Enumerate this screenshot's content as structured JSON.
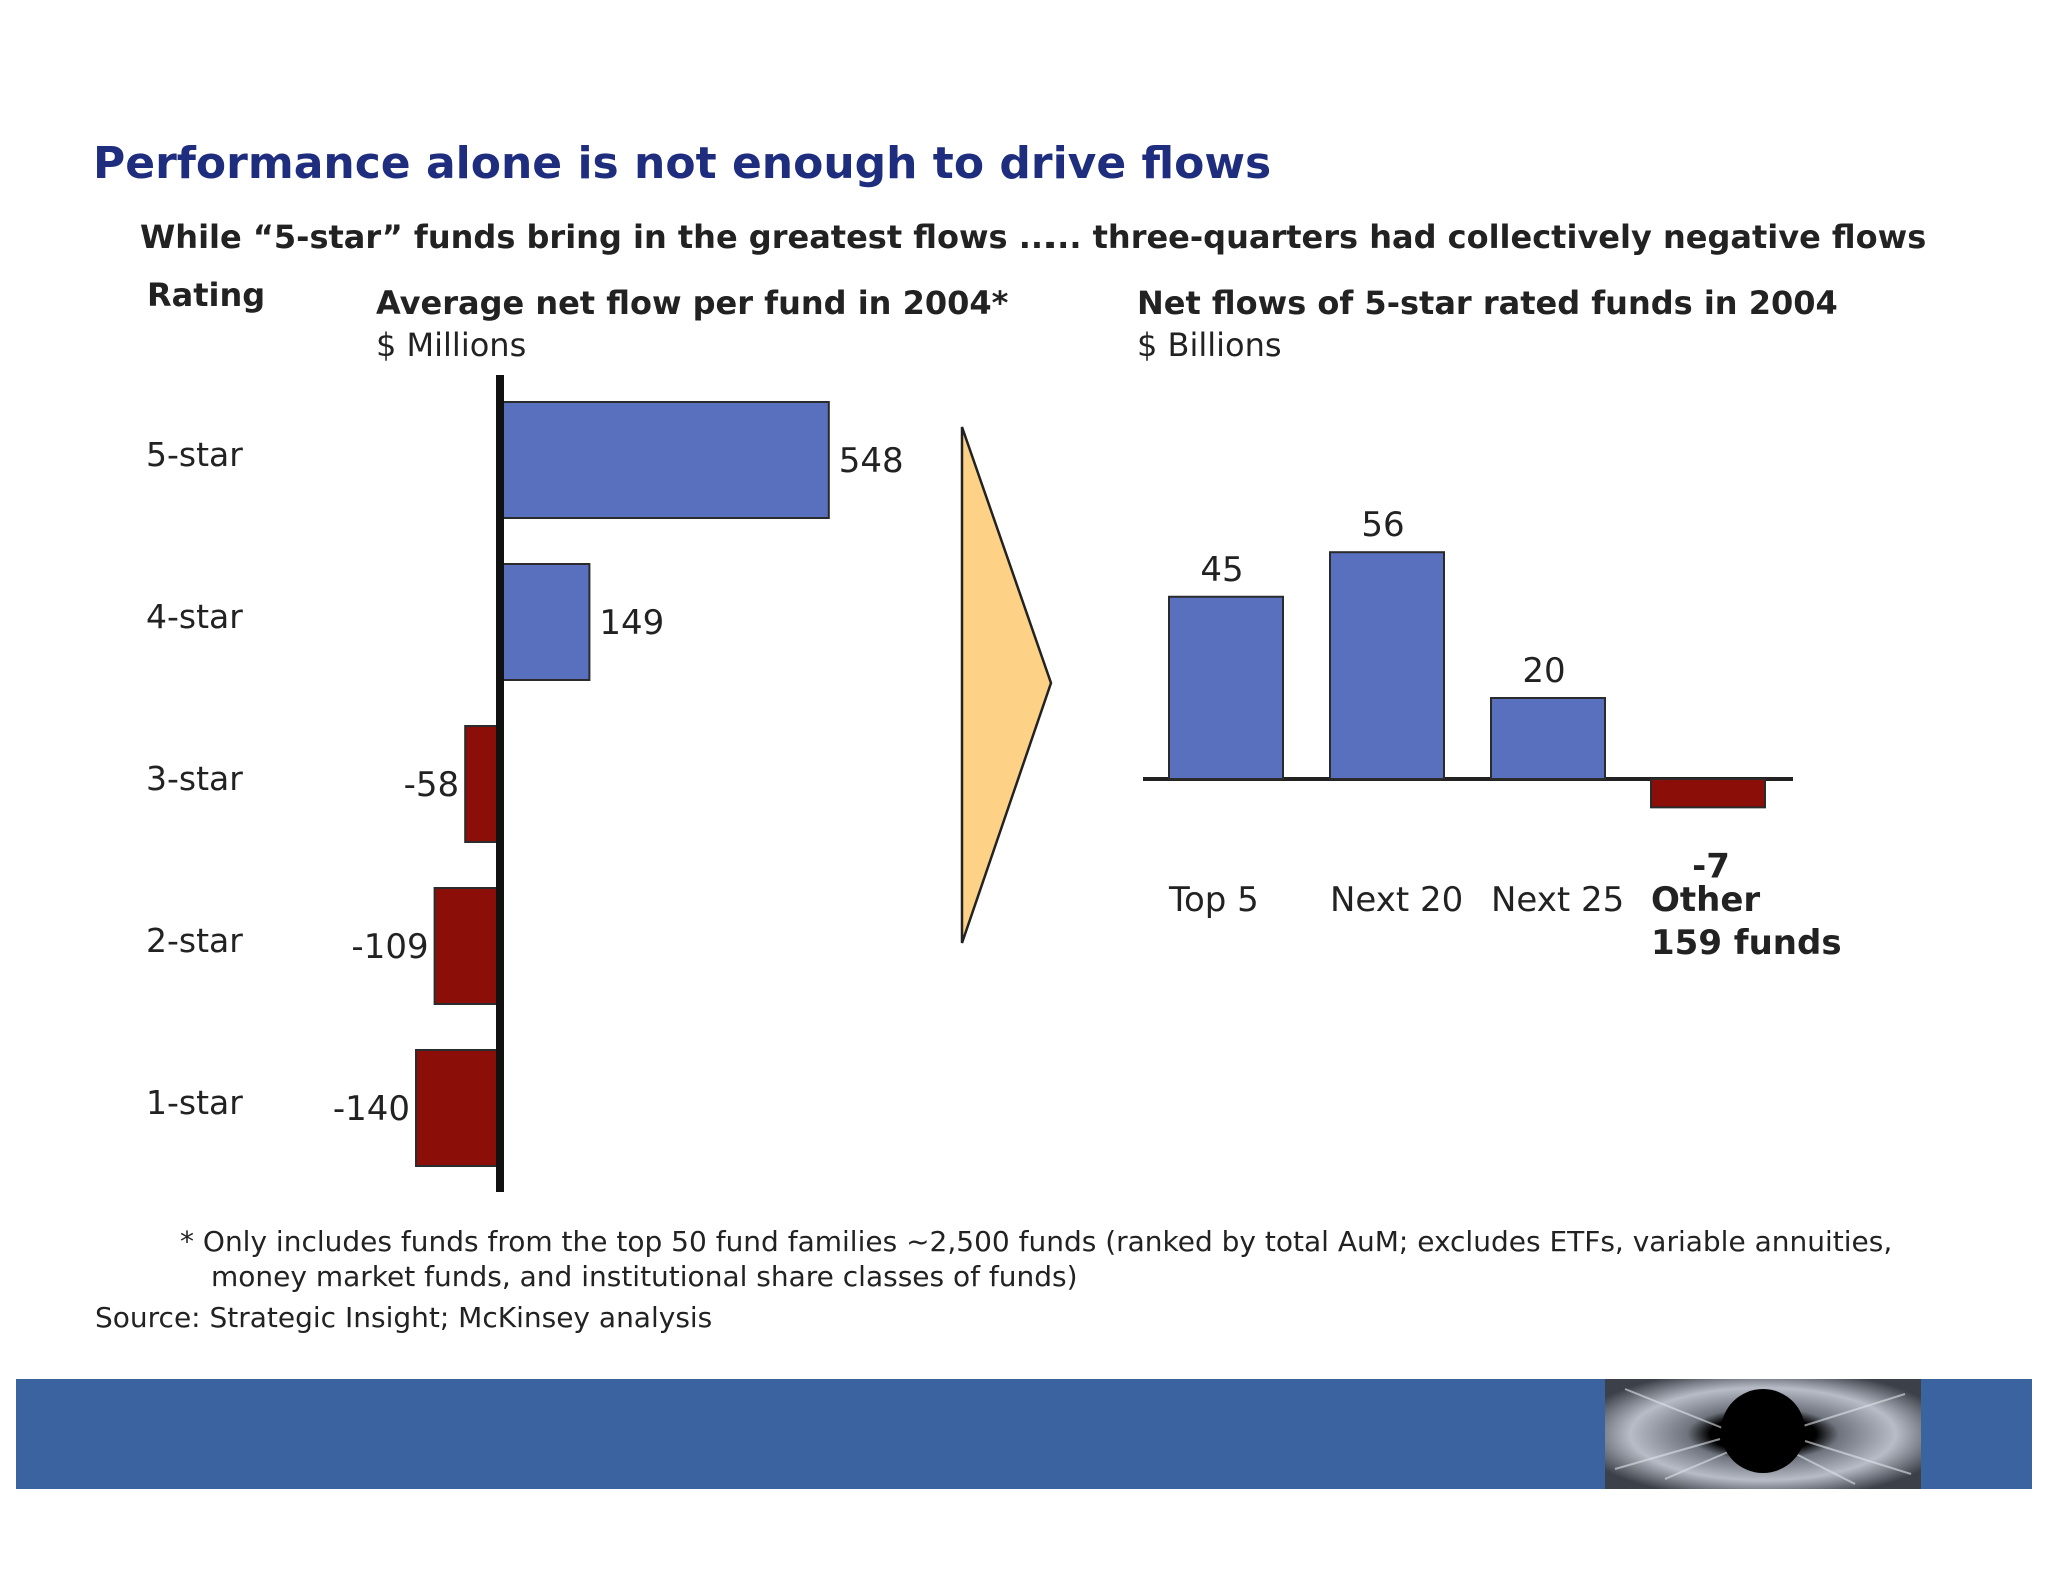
{
  "title": "Performance alone is not enough to drive flows",
  "left_subtitle": "While “5-star” funds bring in the greatest flows ...",
  "right_subtitle": "... three-quarters had collectively negative flows",
  "left_chart_header": {
    "rating_label": "Rating",
    "title": "Average net flow per fund in 2004*",
    "unit": "$ Millions"
  },
  "right_chart_header": {
    "title": "Net flows of 5-star rated funds in 2004",
    "unit": "$ Billions"
  },
  "chart_data": [
    {
      "type": "bar",
      "orientation": "horizontal",
      "title": "Average net flow per fund in 2004*",
      "unit": "$ Millions",
      "categories": [
        "5-star",
        "4-star",
        "3-star",
        "2-star",
        "1-star"
      ],
      "values": [
        548,
        149,
        -58,
        -109,
        -140
      ],
      "labels": [
        "548",
        "149",
        "-58",
        "-109",
        "-140"
      ],
      "positive_color": "#5870be",
      "negative_color": "#8b0e08"
    },
    {
      "type": "bar",
      "orientation": "vertical",
      "title": "Net flows of 5-star rated funds in 2004",
      "unit": "$ Billions",
      "categories": [
        "Top 5",
        "Next 20",
        "Next 25",
        "Other 159 funds"
      ],
      "category_lines": [
        [
          "Top 5"
        ],
        [
          "Next 20"
        ],
        [
          "Next 25"
        ],
        [
          "Other",
          "159 funds"
        ]
      ],
      "values": [
        45,
        56,
        20,
        -7
      ],
      "labels": [
        "45",
        "56",
        "20",
        "-7"
      ],
      "positive_color": "#5870be",
      "negative_color": "#8b0e08"
    }
  ],
  "arrow_color": "#fdd286",
  "footnote_lines": [
    "* Only includes funds from the top 50 fund families ~2,500 funds (ranked by total AuM; excludes ETFs, variable annuities,",
    "money market funds, and institutional share classes of funds)"
  ],
  "source": "Source: Strategic Insight; McKinsey analysis",
  "banner_color": "#3a63a0"
}
